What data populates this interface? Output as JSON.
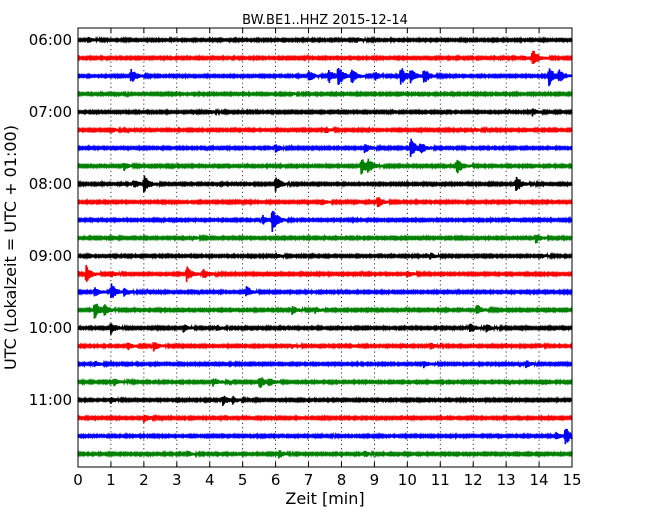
{
  "chart_data": {
    "type": "line",
    "title": "BW.BE1..HHZ 2015-12-14",
    "xlabel": "Zeit  [min]",
    "ylabel": "UTC (Lokalzeit = UTC + 01:00)",
    "xlim": [
      0,
      15
    ],
    "x_ticks": [
      "0",
      "1",
      "2",
      "3",
      "4",
      "5",
      "6",
      "7",
      "8",
      "9",
      "10",
      "11",
      "12",
      "13",
      "14",
      "15"
    ],
    "y_tick_labels": [
      "06:00",
      "07:00",
      "08:00",
      "09:00",
      "10:00",
      "11:00"
    ],
    "grid": {
      "vertical_dotted": true
    },
    "trace_colors": [
      "#000000",
      "#ff0000",
      "#0000ff",
      "#008000"
    ],
    "traces": [
      {
        "start": "06:00",
        "events": [
          [
            0.3,
            0.3
          ],
          [
            8.4,
            0.35
          ]
        ]
      },
      {
        "start": "06:15",
        "events": [
          [
            13.8,
            0.9
          ],
          [
            13.5,
            0.3
          ]
        ]
      },
      {
        "start": "06:30",
        "events": [
          [
            1.6,
            0.8
          ],
          [
            7.0,
            0.55
          ],
          [
            7.6,
            0.75
          ],
          [
            7.9,
            1.0
          ],
          [
            8.3,
            0.8
          ],
          [
            9.0,
            0.45
          ],
          [
            9.8,
            1.0
          ],
          [
            10.1,
            0.6
          ],
          [
            10.5,
            0.8
          ],
          [
            14.3,
            1.0
          ],
          [
            14.6,
            0.6
          ]
        ]
      },
      {
        "start": "06:45",
        "events": [
          [
            6.5,
            0.15
          ]
        ]
      },
      {
        "start": "07:00",
        "events": [
          [
            13.8,
            0.4
          ],
          [
            4.0,
            0.2
          ]
        ]
      },
      {
        "start": "07:15",
        "events": [
          [
            1.0,
            0.3
          ],
          [
            7.5,
            0.3
          ],
          [
            12.0,
            0.2
          ]
        ]
      },
      {
        "start": "07:30",
        "events": [
          [
            6.0,
            0.4
          ],
          [
            8.7,
            0.5
          ],
          [
            10.1,
            1.0
          ],
          [
            10.4,
            0.5
          ]
        ]
      },
      {
        "start": "07:45",
        "events": [
          [
            1.4,
            0.4
          ],
          [
            8.6,
            0.9
          ],
          [
            8.8,
            0.6
          ],
          [
            11.5,
            0.9
          ]
        ]
      },
      {
        "start": "08:00",
        "events": [
          [
            2.0,
            0.9
          ],
          [
            6.0,
            0.75
          ],
          [
            13.3,
            0.85
          ],
          [
            1.7,
            0.45
          ]
        ]
      },
      {
        "start": "08:15",
        "events": [
          [
            9.1,
            0.6
          ],
          [
            7.4,
            0.3
          ]
        ]
      },
      {
        "start": "08:30",
        "events": [
          [
            5.9,
            1.4
          ],
          [
            5.6,
            0.5
          ]
        ]
      },
      {
        "start": "08:45",
        "events": [
          [
            13.9,
            0.5
          ],
          [
            3.5,
            0.2
          ]
        ]
      },
      {
        "start": "09:00",
        "events": [
          [
            6.0,
            0.25
          ],
          [
            10.7,
            0.3
          ],
          [
            14.0,
            0.3
          ]
        ]
      },
      {
        "start": "09:15",
        "events": [
          [
            0.25,
            0.9
          ],
          [
            3.3,
            0.75
          ],
          [
            3.8,
            0.5
          ],
          [
            1.0,
            0.3
          ],
          [
            10.0,
            0.3
          ]
        ]
      },
      {
        "start": "09:30",
        "events": [
          [
            1.0,
            0.9
          ],
          [
            1.4,
            0.4
          ],
          [
            5.1,
            0.6
          ],
          [
            0.5,
            0.5
          ]
        ]
      },
      {
        "start": "09:45",
        "events": [
          [
            0.5,
            1.0
          ],
          [
            0.8,
            0.5
          ],
          [
            6.5,
            0.4
          ],
          [
            12.1,
            0.6
          ],
          [
            7.2,
            0.3
          ]
        ]
      },
      {
        "start": "10:00",
        "events": [
          [
            1.0,
            0.6
          ],
          [
            3.2,
            0.4
          ],
          [
            4.2,
            0.3
          ],
          [
            11.9,
            0.5
          ],
          [
            12.4,
            0.4
          ]
        ]
      },
      {
        "start": "10:15",
        "events": [
          [
            1.5,
            0.4
          ],
          [
            2.3,
            0.5
          ],
          [
            6.5,
            0.2
          ],
          [
            10.7,
            0.3
          ],
          [
            14.0,
            0.2
          ]
        ]
      },
      {
        "start": "10:30",
        "events": [
          [
            0.5,
            0.3
          ],
          [
            10.5,
            0.35
          ],
          [
            13.6,
            0.4
          ]
        ]
      },
      {
        "start": "10:45",
        "events": [
          [
            1.1,
            0.4
          ],
          [
            4.1,
            0.45
          ],
          [
            5.5,
            0.7
          ],
          [
            5.8,
            0.4
          ]
        ]
      },
      {
        "start": "11:00",
        "events": [
          [
            1.0,
            0.3
          ],
          [
            4.4,
            0.5
          ],
          [
            4.7,
            0.3
          ]
        ]
      },
      {
        "start": "11:15",
        "events": [
          [
            2.0,
            0.4
          ]
        ]
      },
      {
        "start": "11:30",
        "events": [
          [
            14.8,
            0.9
          ],
          [
            14.5,
            0.4
          ]
        ]
      },
      {
        "start": "11:45",
        "events": [
          [
            3.3,
            0.3
          ],
          [
            6.1,
            0.4
          ],
          [
            8.7,
            0.3
          ]
        ]
      }
    ]
  }
}
